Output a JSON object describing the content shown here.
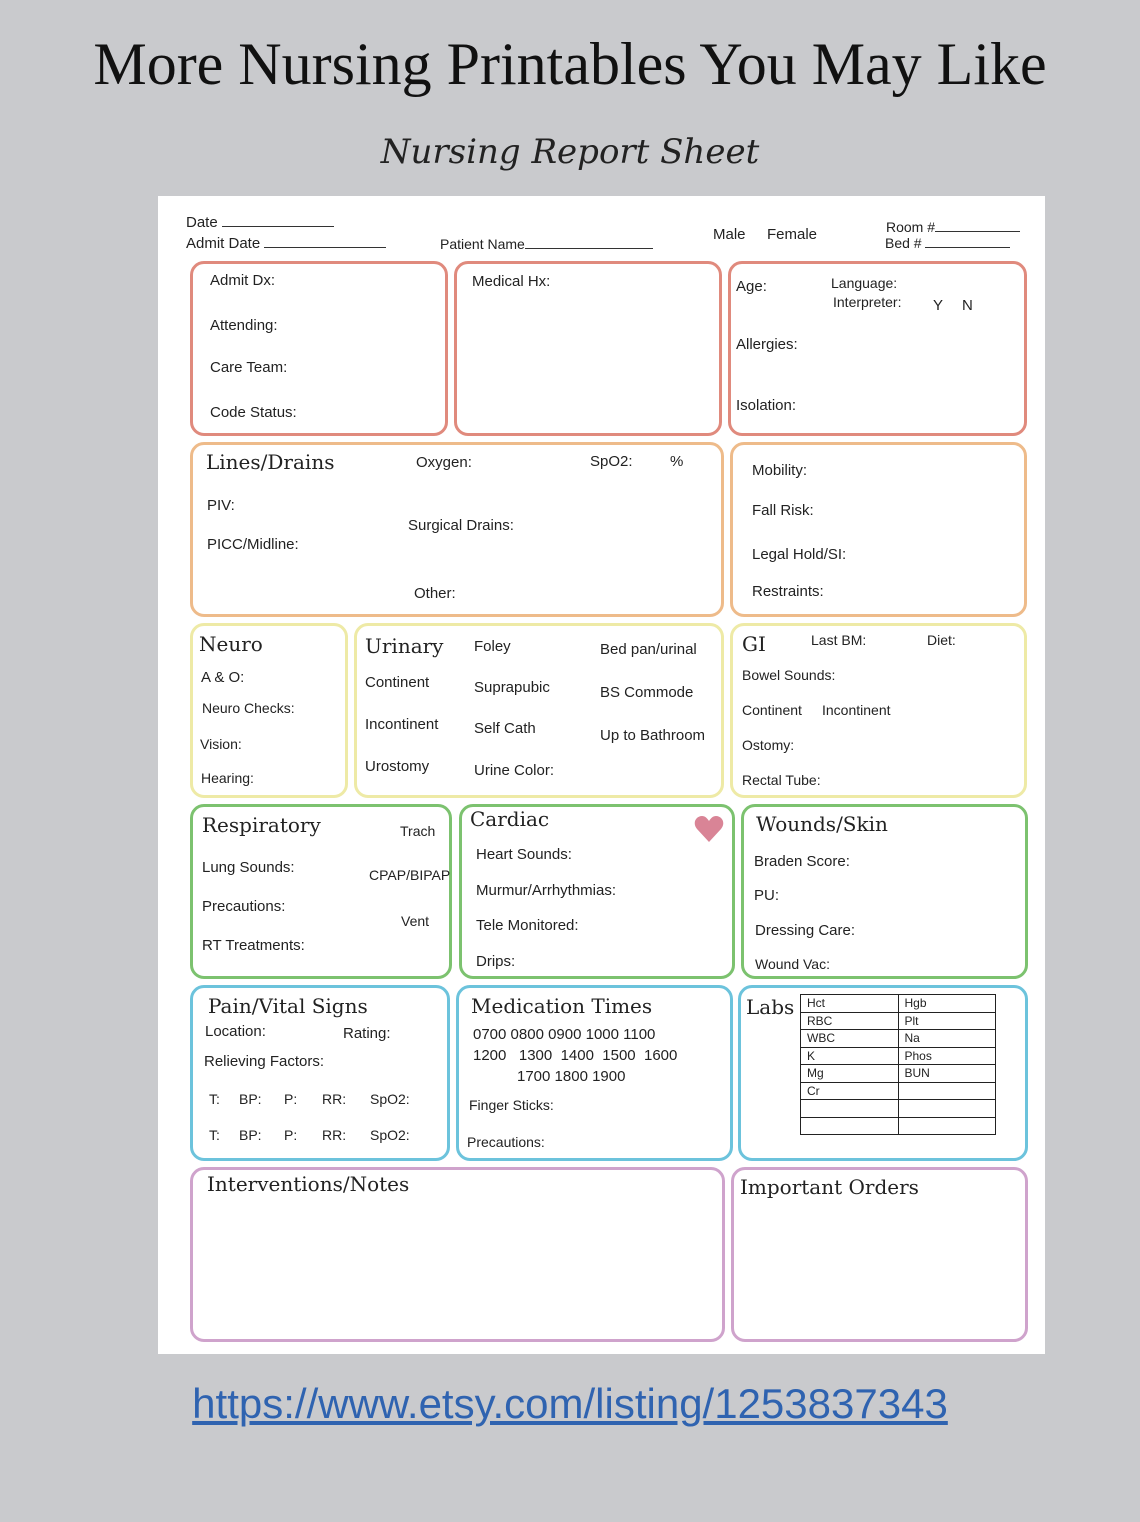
{
  "title": "More Nursing Printables You May Like",
  "subtitle": "Nursing Report Sheet",
  "link": "https://www.etsy.com/listing/1253837343",
  "colors": {
    "background": "#c9cacd",
    "salmon": "#e08a7d",
    "orange": "#eebb8a",
    "yellow": "#eeeaa6",
    "green": "#7cc26f",
    "blue": "#6cc3dc",
    "purple": "#cfa3cc",
    "heart": "#d98496",
    "link": "#2f63b0"
  },
  "header": {
    "date": "Date",
    "admit_date": "Admit Date",
    "patient_name": "Patient Name",
    "male": "Male",
    "female": "Female",
    "room": "Room #",
    "bed": "Bed #"
  },
  "admit": {
    "admit_dx": "Admit Dx:",
    "attending": "Attending:",
    "care_team": "Care Team:",
    "code_status": "Code Status:"
  },
  "medical": {
    "hx": "Medical Hx:"
  },
  "age_box": {
    "age": "Age:",
    "language": "Language:",
    "interpreter": "Interpreter:",
    "y": "Y",
    "n": "N",
    "allergies": "Allergies:",
    "isolation": "Isolation:"
  },
  "lines": {
    "heading": "Lines/Drains",
    "oxygen": "Oxygen:",
    "spo2": "SpO2:",
    "percent": "%",
    "piv": "PIV:",
    "surgical_drains": "Surgical Drains:",
    "picc": "PICC/Midline:",
    "other": "Other:"
  },
  "mobility": {
    "mobility": "Mobility:",
    "fall_risk": "Fall Risk:",
    "legal_hold": "Legal Hold/SI:",
    "restraints": "Restraints:"
  },
  "neuro": {
    "heading": "Neuro",
    "ao": "A & O:",
    "checks": "Neuro Checks:",
    "vision": "Vision:",
    "hearing": "Hearing:"
  },
  "urinary": {
    "heading": "Urinary",
    "continent": "Continent",
    "incontinent": "Incontinent",
    "urostomy": "Urostomy",
    "foley": "Foley",
    "suprapubic": "Suprapubic",
    "self_cath": "Self Cath",
    "urine_color": "Urine Color:",
    "bedpan": "Bed pan/urinal",
    "commode": "BS Commode",
    "bathroom": "Up to Bathroom"
  },
  "gi": {
    "heading": "GI",
    "last_bm": "Last BM:",
    "diet": "Diet:",
    "bowel_sounds": "Bowel Sounds:",
    "continent": "Continent",
    "incontinent": "Incontinent",
    "ostomy": "Ostomy:",
    "rectal_tube": "Rectal Tube:"
  },
  "respiratory": {
    "heading": "Respiratory",
    "trach": "Trach",
    "lung_sounds": "Lung Sounds:",
    "cpap": "CPAP/BIPAP",
    "precautions": "Precautions:",
    "vent": "Vent",
    "rt": "RT Treatments:"
  },
  "cardiac": {
    "heading": "Cardiac",
    "heart_sounds": "Heart Sounds:",
    "murmur": "Murmur/Arrhythmias:",
    "tele": "Tele Monitored:",
    "drips": "Drips:"
  },
  "wounds": {
    "heading": "Wounds/Skin",
    "braden": "Braden Score:",
    "pu": "PU:",
    "dressing": "Dressing Care:",
    "wound_vac": "Wound Vac:"
  },
  "pain": {
    "heading": "Pain/Vital Signs",
    "location": "Location:",
    "rating": "Rating:",
    "relieving": "Relieving Factors:",
    "t": "T:",
    "bp": "BP:",
    "p": "P:",
    "rr": "RR:",
    "spo2": "SpO2:"
  },
  "meds": {
    "heading": "Medication Times",
    "row1": "0700  0800  0900  1000  1100",
    "row2": "1200   1300  1400  1500  1600",
    "row3": "1700  1800  1900",
    "finger_sticks": "Finger Sticks:",
    "precautions": "Precautions:"
  },
  "labs": {
    "heading": "Labs",
    "rows": [
      [
        "Hct",
        "Hgb"
      ],
      [
        "RBC",
        "Plt"
      ],
      [
        "WBC",
        "Na"
      ],
      [
        "K",
        "Phos"
      ],
      [
        "Mg",
        "BUN"
      ],
      [
        "Cr",
        ""
      ],
      [
        "",
        ""
      ],
      [
        "",
        ""
      ]
    ]
  },
  "interventions": {
    "heading": "Interventions/Notes"
  },
  "orders": {
    "heading": "Important Orders"
  }
}
